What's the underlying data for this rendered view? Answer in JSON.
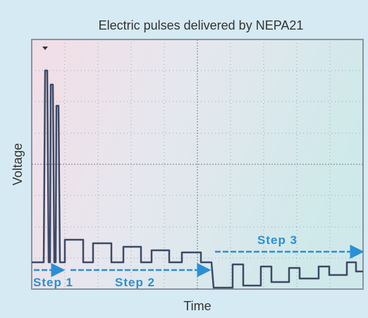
{
  "header": {
    "title": "Electric pulses delivered by NEPA21"
  },
  "axes": {
    "y_label": "Voltage",
    "x_label": "Time"
  },
  "annotations": {
    "step1": "Step 1",
    "step2": "Step 2",
    "step3": "Step 3"
  }
}
